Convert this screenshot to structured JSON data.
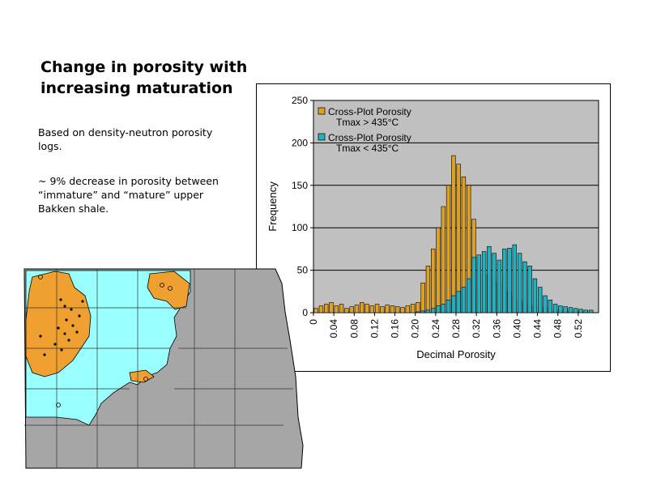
{
  "slide": {
    "title": "Change in porosity with\nincreasing maturation",
    "note1": "Based on density-neutron porosity\nlogs.",
    "note2": "~ 9% decrease in porosity  between\n“immature” and “mature” upper\nBakken shale."
  },
  "colors": {
    "mature": "#e0a020",
    "immature": "#20b2c0",
    "plot_bg": "#c0c0c0",
    "map_immature": "#99ffff",
    "map_mature": "#f0a030",
    "map_other": "#a6a6a6"
  },
  "map": {
    "icon": "north-dakota-maturity-map"
  },
  "chart_data": {
    "type": "bar",
    "xlabel": "Decimal Porosity",
    "ylabel": "Frequency",
    "ylim": [
      0,
      250
    ],
    "yticks": [
      0,
      50,
      100,
      150,
      200,
      250
    ],
    "xlim": [
      0,
      0.56
    ],
    "xticks": [
      "0",
      "0.04",
      "0.08",
      "0.12",
      "0.16",
      "0.20",
      "0.24",
      "0.28",
      "0.32",
      "0.36",
      "0.40",
      "0.44",
      "0.48",
      "0.52"
    ],
    "bin_width": 0.01,
    "grid": true,
    "legend_placement": "top-left",
    "legend": [
      "Cross-Plot Porosity\nTmax > 435°C",
      "Cross-Plot Porosity\nTmax < 435°C"
    ],
    "series": [
      {
        "name": "Cross-Plot Porosity Tmax > 435°C",
        "x": [
          0.005,
          0.015,
          0.025,
          0.035,
          0.045,
          0.055,
          0.065,
          0.075,
          0.085,
          0.095,
          0.105,
          0.115,
          0.125,
          0.135,
          0.145,
          0.155,
          0.165,
          0.175,
          0.185,
          0.195,
          0.205,
          0.215,
          0.225,
          0.235,
          0.245,
          0.255,
          0.265,
          0.275,
          0.285,
          0.295,
          0.305,
          0.315,
          0.325,
          0.335,
          0.345,
          0.355,
          0.365,
          0.375,
          0.385,
          0.395,
          0.405,
          0.415,
          0.425,
          0.435,
          0.445,
          0.455,
          0.465,
          0.475,
          0.485,
          0.495,
          0.505,
          0.515,
          0.525,
          0.535,
          0.545
        ],
        "values": [
          5,
          8,
          10,
          12,
          8,
          10,
          5,
          7,
          9,
          12,
          10,
          8,
          10,
          7,
          9,
          8,
          7,
          6,
          8,
          10,
          12,
          35,
          55,
          75,
          100,
          125,
          150,
          185,
          175,
          160,
          150,
          110,
          50,
          45,
          45,
          40,
          35,
          30,
          25,
          20,
          15,
          12,
          10,
          8,
          7,
          6,
          5,
          4,
          3,
          3,
          2,
          2,
          2,
          1,
          1
        ]
      },
      {
        "name": "Cross-Plot Porosity Tmax < 435°C",
        "x": [
          0.205,
          0.215,
          0.225,
          0.235,
          0.245,
          0.255,
          0.265,
          0.275,
          0.285,
          0.295,
          0.305,
          0.315,
          0.325,
          0.335,
          0.345,
          0.355,
          0.365,
          0.375,
          0.385,
          0.395,
          0.405,
          0.415,
          0.425,
          0.435,
          0.445,
          0.455,
          0.465,
          0.475,
          0.485,
          0.495,
          0.505,
          0.515,
          0.525,
          0.535,
          0.545
        ],
        "values": [
          1,
          2,
          3,
          5,
          8,
          10,
          15,
          20,
          25,
          30,
          40,
          65,
          68,
          72,
          78,
          70,
          62,
          75,
          76,
          80,
          70,
          60,
          55,
          40,
          30,
          20,
          15,
          10,
          8,
          7,
          6,
          5,
          4,
          3,
          3
        ]
      }
    ]
  }
}
